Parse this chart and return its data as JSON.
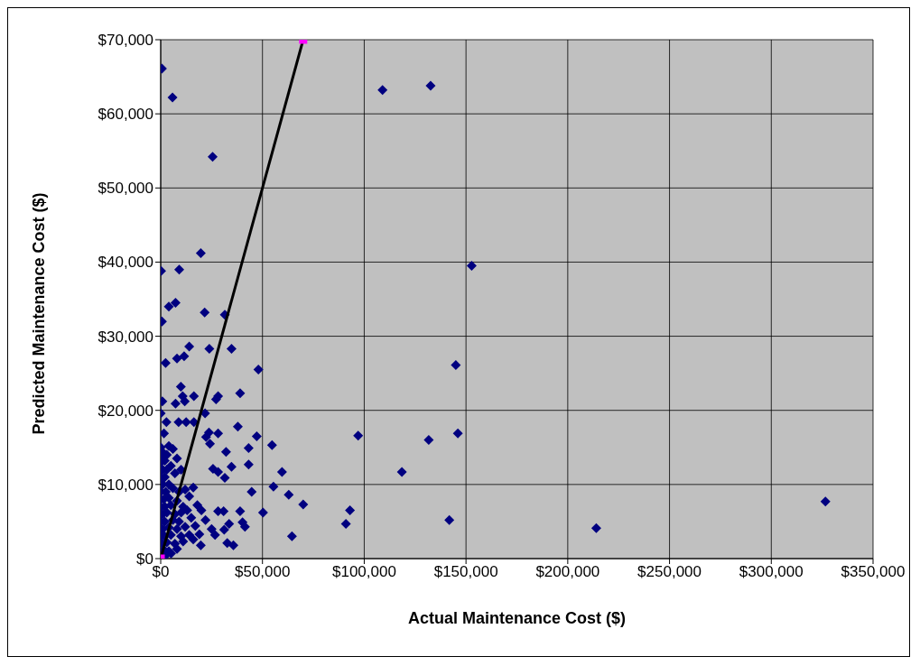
{
  "chart_data": {
    "type": "scatter",
    "xlabel": "Actual Maintenance Cost ($)",
    "ylabel": "Predicted Maintenance Cost ($)",
    "xlim": [
      0,
      350000
    ],
    "ylim": [
      0,
      70000
    ],
    "xticks": [
      {
        "value": 0,
        "label": "$0"
      },
      {
        "value": 50000,
        "label": "$50,000"
      },
      {
        "value": 100000,
        "label": "$100,000"
      },
      {
        "value": 150000,
        "label": "$150,000"
      },
      {
        "value": 200000,
        "label": "$200,000"
      },
      {
        "value": 250000,
        "label": "$250,000"
      },
      {
        "value": 300000,
        "label": "$300,000"
      },
      {
        "value": 350000,
        "label": "$350,000"
      }
    ],
    "yticks": [
      {
        "value": 0,
        "label": "$0"
      },
      {
        "value": 10000,
        "label": "$10,000"
      },
      {
        "value": 20000,
        "label": "$20,000"
      },
      {
        "value": 30000,
        "label": "$30,000"
      },
      {
        "value": 40000,
        "label": "$40,000"
      },
      {
        "value": 50000,
        "label": "$50,000"
      },
      {
        "value": 60000,
        "label": "$60,000"
      },
      {
        "value": 70000,
        "label": "$70,000"
      }
    ],
    "grid": true,
    "series": [
      {
        "type": "scatter",
        "marker": "diamond",
        "color": "#000080",
        "x": [
          600,
          5800,
          109000,
          132600,
          25500,
          19700,
          200,
          9100,
          152800,
          4000,
          7300,
          21600,
          31500,
          600,
          14000,
          23900,
          34800,
          2400,
          8000,
          11500,
          48000,
          145000,
          9900,
          10800,
          16300,
          11800,
          7300,
          28200,
          27200,
          39000,
          800,
          0,
          21800,
          2800,
          8800,
          12500,
          16300,
          1600,
          23700,
          28200,
          22300,
          37900,
          47200,
          97000,
          131700,
          146000,
          54700,
          43200,
          32100,
          24200,
          43200,
          34800,
          59600,
          118500,
          25700,
          28200,
          31500,
          55400,
          44700,
          62900,
          70000,
          93000,
          91000,
          141800,
          214000,
          326600,
          50300,
          39000,
          28200,
          30900,
          41400,
          40200,
          33600,
          31200,
          26700,
          64500,
          32700,
          35700,
          19700,
          5100,
          0,
          500,
          1000,
          0,
          2000,
          3000,
          4000,
          6000,
          8000,
          1000,
          3000,
          5000,
          0,
          2000,
          7000,
          10000,
          1000,
          4000,
          0,
          2500,
          6000,
          9000,
          12000,
          0,
          1500,
          4000,
          8000,
          14000,
          16000,
          0,
          2000,
          5000,
          11000,
          18000,
          1000,
          3000,
          7000,
          10000,
          13000,
          20000,
          0,
          2000,
          6000,
          9000,
          15000,
          22000,
          1000,
          4000,
          8000,
          12000,
          17000,
          25000,
          0,
          2000,
          5000,
          10000,
          14000,
          19000,
          1000,
          3000,
          7000,
          11000,
          16000,
          1500,
          4000,
          8000,
          2000
        ],
        "values": [
          66100,
          62200,
          63200,
          63800,
          54200,
          41200,
          38800,
          39000,
          39500,
          34000,
          34500,
          33200,
          32900,
          32000,
          28600,
          28300,
          28300,
          26400,
          27000,
          27300,
          25500,
          26100,
          23200,
          21900,
          21900,
          21200,
          20900,
          21900,
          21500,
          22300,
          21200,
          19600,
          19600,
          18400,
          18400,
          18400,
          18400,
          16900,
          17000,
          16900,
          16400,
          17800,
          16500,
          16600,
          16000,
          16900,
          15300,
          14900,
          14400,
          15500,
          12700,
          12400,
          11700,
          11700,
          12100,
          11700,
          10900,
          9700,
          9000,
          8600,
          7300,
          6500,
          4700,
          5200,
          4100,
          7700,
          6200,
          6400,
          6400,
          6400,
          4300,
          4900,
          4700,
          3900,
          3200,
          3000,
          2100,
          1800,
          1800,
          700,
          15000,
          14500,
          13800,
          13000,
          13200,
          14000,
          15200,
          14800,
          13500,
          12000,
          12000,
          12500,
          11000,
          11000,
          11500,
          12000,
          10000,
          10000,
          9000,
          9000,
          9500,
          9000,
          9300,
          8000,
          8000,
          8200,
          7800,
          8400,
          9600,
          7000,
          7000,
          7200,
          7000,
          7200,
          6000,
          6200,
          6000,
          6200,
          6500,
          6500,
          5000,
          5000,
          5200,
          5000,
          5500,
          5200,
          4000,
          4200,
          4000,
          4300,
          4400,
          4000,
          3000,
          3000,
          3200,
          3000,
          3200,
          3300,
          2000,
          2200,
          2000,
          2300,
          2600,
          1200,
          1000,
          1300,
          300
        ]
      },
      {
        "type": "line",
        "marker": "none",
        "color": "#000000",
        "x": [
          0,
          70000
        ],
        "values": [
          0,
          70000
        ]
      },
      {
        "type": "scatter",
        "marker": "square",
        "color": "#ff00ff",
        "x": [
          0,
          70000
        ],
        "values": [
          0,
          70000
        ]
      }
    ]
  }
}
